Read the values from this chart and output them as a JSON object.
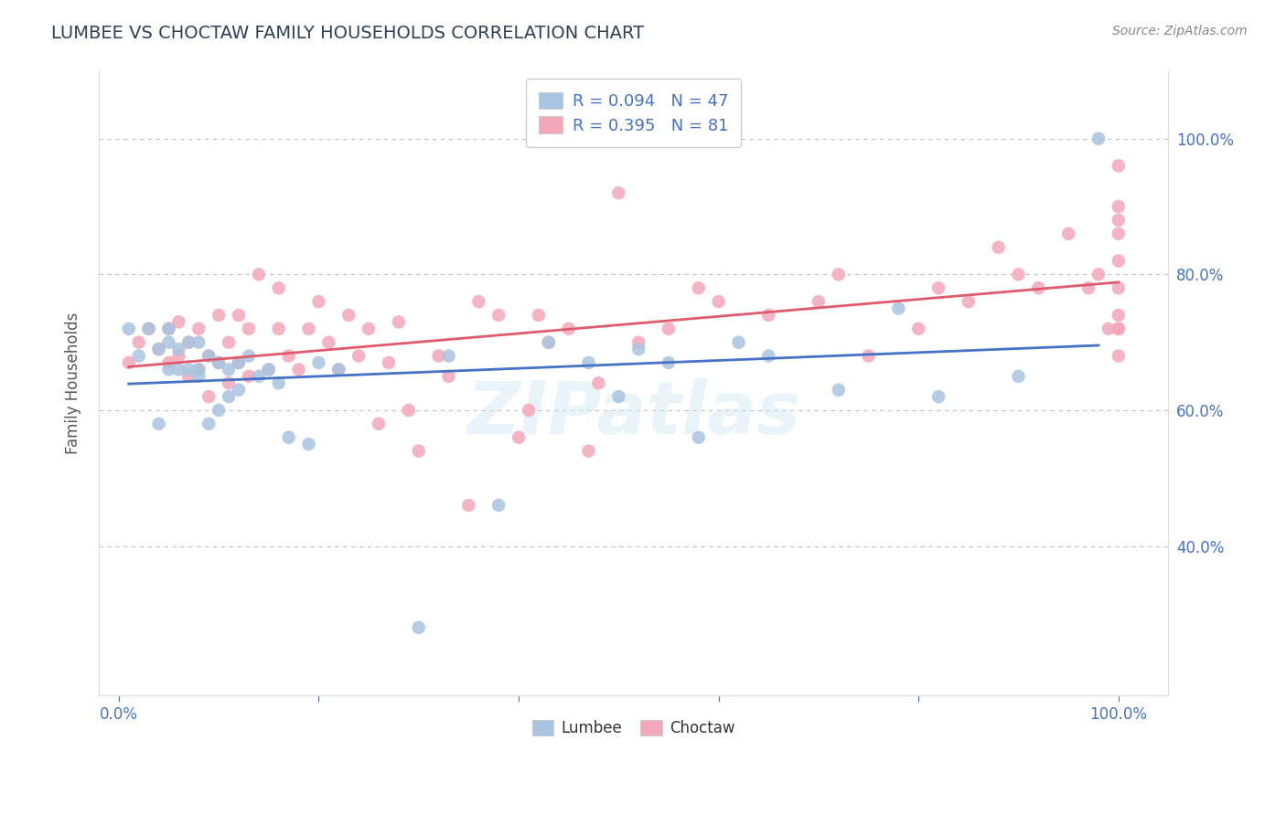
{
  "title": "LUMBEE VS CHOCTAW FAMILY HOUSEHOLDS CORRELATION CHART",
  "source": "Source: ZipAtlas.com",
  "ylabel": "Family Households",
  "xlim": [
    -0.02,
    1.05
  ],
  "ylim": [
    0.18,
    1.1
  ],
  "xtick_positions": [
    0.0,
    1.0
  ],
  "xtick_labels": [
    "0.0%",
    "100.0%"
  ],
  "ytick_positions": [
    0.4,
    0.6,
    0.8,
    1.0
  ],
  "ytick_labels": [
    "40.0%",
    "60.0%",
    "80.0%",
    "100.0%"
  ],
  "lumbee_color": "#a8c4e0",
  "choctaw_color": "#f4a7b9",
  "lumbee_line_color": "#4472c4",
  "choctaw_line_color": "#e05a6e",
  "lumbee_R": 0.094,
  "lumbee_N": 47,
  "choctaw_R": 0.395,
  "choctaw_N": 81,
  "legend_text_color": "#4472c4",
  "title_color": "#2e4057",
  "axis_label_color": "#555555",
  "tick_color": "#4472c4",
  "grid_color": "#b8b8b8",
  "watermark": "ZIPatlas",
  "lumbee_x": [
    0.01,
    0.02,
    0.03,
    0.04,
    0.04,
    0.05,
    0.05,
    0.05,
    0.06,
    0.06,
    0.07,
    0.07,
    0.08,
    0.08,
    0.08,
    0.09,
    0.09,
    0.1,
    0.1,
    0.11,
    0.11,
    0.12,
    0.12,
    0.13,
    0.14,
    0.15,
    0.16,
    0.17,
    0.19,
    0.2,
    0.22,
    0.3,
    0.33,
    0.38,
    0.43,
    0.47,
    0.5,
    0.52,
    0.55,
    0.58,
    0.62,
    0.65,
    0.72,
    0.78,
    0.82,
    0.9,
    0.98
  ],
  "lumbee_y": [
    0.72,
    0.68,
    0.72,
    0.69,
    0.58,
    0.7,
    0.66,
    0.72,
    0.69,
    0.66,
    0.7,
    0.66,
    0.65,
    0.7,
    0.66,
    0.58,
    0.68,
    0.67,
    0.6,
    0.66,
    0.62,
    0.67,
    0.63,
    0.68,
    0.65,
    0.66,
    0.64,
    0.56,
    0.55,
    0.67,
    0.66,
    0.28,
    0.68,
    0.46,
    0.7,
    0.67,
    0.62,
    0.69,
    0.67,
    0.56,
    0.7,
    0.68,
    0.63,
    0.75,
    0.62,
    0.65,
    1.0
  ],
  "choctaw_x": [
    0.01,
    0.02,
    0.03,
    0.04,
    0.05,
    0.05,
    0.06,
    0.06,
    0.07,
    0.07,
    0.08,
    0.08,
    0.09,
    0.09,
    0.1,
    0.1,
    0.11,
    0.11,
    0.12,
    0.12,
    0.13,
    0.13,
    0.14,
    0.15,
    0.16,
    0.16,
    0.17,
    0.18,
    0.19,
    0.2,
    0.21,
    0.22,
    0.23,
    0.24,
    0.25,
    0.26,
    0.27,
    0.28,
    0.29,
    0.3,
    0.32,
    0.33,
    0.35,
    0.36,
    0.38,
    0.4,
    0.41,
    0.42,
    0.43,
    0.45,
    0.47,
    0.48,
    0.5,
    0.52,
    0.55,
    0.58,
    0.6,
    0.65,
    0.7,
    0.72,
    0.75,
    0.8,
    0.82,
    0.85,
    0.88,
    0.9,
    0.92,
    0.95,
    0.97,
    0.98,
    0.99,
    1.0,
    1.0,
    1.0,
    1.0,
    1.0,
    1.0,
    1.0,
    1.0,
    1.0,
    1.0
  ],
  "choctaw_y": [
    0.67,
    0.7,
    0.72,
    0.69,
    0.67,
    0.72,
    0.68,
    0.73,
    0.65,
    0.7,
    0.66,
    0.72,
    0.62,
    0.68,
    0.67,
    0.74,
    0.64,
    0.7,
    0.67,
    0.74,
    0.65,
    0.72,
    0.8,
    0.66,
    0.72,
    0.78,
    0.68,
    0.66,
    0.72,
    0.76,
    0.7,
    0.66,
    0.74,
    0.68,
    0.72,
    0.58,
    0.67,
    0.73,
    0.6,
    0.54,
    0.68,
    0.65,
    0.46,
    0.76,
    0.74,
    0.56,
    0.6,
    0.74,
    0.7,
    0.72,
    0.54,
    0.64,
    0.92,
    0.7,
    0.72,
    0.78,
    0.76,
    0.74,
    0.76,
    0.8,
    0.68,
    0.72,
    0.78,
    0.76,
    0.84,
    0.8,
    0.78,
    0.86,
    0.78,
    0.8,
    0.72,
    0.68,
    0.74,
    0.78,
    0.82,
    0.86,
    0.88,
    0.72,
    0.9,
    0.96,
    0.72
  ]
}
